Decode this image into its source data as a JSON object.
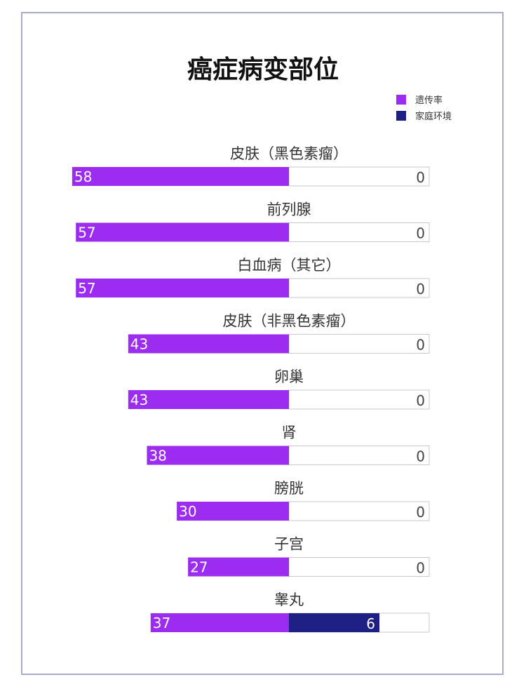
{
  "chart_data": {
    "type": "bar",
    "title": "癌症病变部位",
    "categories": [
      "皮肤（黑色素瘤）",
      "前列腺",
      "白血病（其它）",
      "皮肤（非黑色素瘤）",
      "卵巢",
      "肾",
      "膀胱",
      "子宫",
      "睾丸"
    ],
    "series": [
      {
        "name": "遗传率",
        "values": [
          58,
          57,
          57,
          43,
          43,
          38,
          30,
          27,
          37
        ],
        "color": "#9b2cf0"
      },
      {
        "name": "家庭环境",
        "values": [
          0,
          0,
          0,
          0,
          0,
          0,
          0,
          0,
          6
        ],
        "color": "#1d1f85"
      }
    ],
    "orientation": "horizontal-diverging",
    "legend_position": "top-right",
    "grid": false
  }
}
